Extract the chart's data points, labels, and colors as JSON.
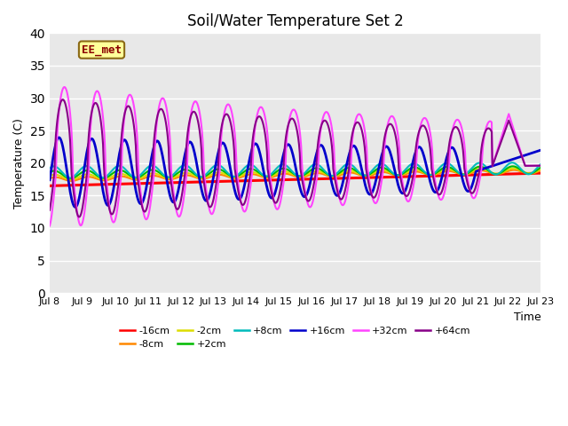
{
  "title": "Soil/Water Temperature Set 2",
  "xlabel": "Time",
  "ylabel": "Temperature (C)",
  "annotation": "EE_met",
  "ylim": [
    0,
    40
  ],
  "yticks": [
    0,
    5,
    10,
    15,
    20,
    25,
    30,
    35,
    40
  ],
  "x_labels": [
    "Jul 8",
    "Jul 9",
    "Jul 10",
    "Jul 11",
    "Jul 12",
    "Jul 13",
    "Jul 14",
    "Jul 15",
    "Jul 16",
    "Jul 17",
    "Jul 18",
    "Jul 19",
    "Jul 20",
    "Jul 21",
    "Jul 22",
    "Jul 23"
  ],
  "bg_color": "#e8e8e8",
  "fig_color": "#ffffff",
  "series": [
    {
      "label": "-16cm",
      "color": "#ff0000",
      "lw": 2.2
    },
    {
      "label": "-8cm",
      "color": "#ff8800",
      "lw": 1.5
    },
    {
      "label": "-2cm",
      "color": "#dddd00",
      "lw": 1.5
    },
    {
      "label": "+2cm",
      "color": "#00bb00",
      "lw": 1.5
    },
    {
      "label": "+8cm",
      "color": "#00bbbb",
      "lw": 1.5
    },
    {
      "label": "+16cm",
      "color": "#0000cc",
      "lw": 2.0
    },
    {
      "label": "+32cm",
      "color": "#ff44ff",
      "lw": 1.5
    },
    {
      "label": "+64cm",
      "color": "#880088",
      "lw": 1.5
    }
  ]
}
